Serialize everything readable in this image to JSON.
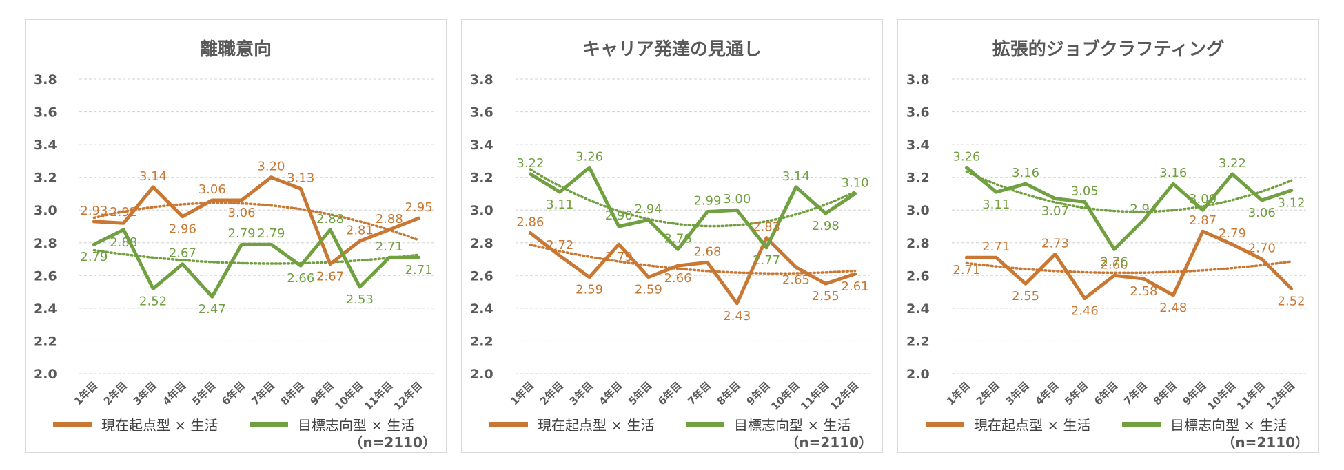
{
  "colors": {
    "current": "#c87832",
    "goal": "#70a040",
    "grid": "#d9d9d9",
    "text": "#595959"
  },
  "legend": {
    "current": "現在起点型 × 生活",
    "goal": "目標志向型 × 生活"
  },
  "note": "（n=2110）",
  "chart_data": [
    {
      "type": "line",
      "title": "離職意向",
      "categories": [
        "1年目",
        "2年目",
        "3年目",
        "4年目",
        "5年目",
        "6年目",
        "7年目",
        "8年目",
        "9年目",
        "10年目",
        "11年目",
        "12年目"
      ],
      "ylim": [
        2.0,
        3.8
      ],
      "yticks": [
        "2.0",
        "2.2",
        "2.4",
        "2.6",
        "2.8",
        "3.0",
        "3.2",
        "3.4",
        "3.6",
        "3.8"
      ],
      "trendline": "polynomial (dotted)",
      "series": [
        {
          "name": "現在起点型 × 生活",
          "values": [
            2.93,
            2.92,
            3.14,
            2.96,
            3.06,
            3.06,
            3.2,
            3.13,
            2.67,
            2.81,
            2.88,
            2.95
          ],
          "labels": [
            "2.93",
            "2.92",
            "3.14",
            "2.96",
            "3.06",
            "3.06",
            "3.20",
            "3.13",
            "2.67",
            "2.81",
            "2.88",
            "2.95"
          ],
          "label_pos": [
            "above",
            "above",
            "above",
            "below",
            "above",
            "below",
            "above",
            "above",
            "below",
            "above",
            "above",
            "above"
          ]
        },
        {
          "name": "目標志向型 × 生活",
          "values": [
            2.79,
            2.88,
            2.52,
            2.67,
            2.47,
            2.79,
            2.79,
            2.66,
            2.88,
            2.53,
            2.71,
            2.71
          ],
          "labels": [
            "2.79",
            "2.88",
            "2.52",
            "2.67",
            "2.47",
            "2.79",
            "2.79",
            "2.66",
            "2.88",
            "2.53",
            "2.71",
            "2.71"
          ],
          "label_pos": [
            "below",
            "below",
            "below",
            "above",
            "below",
            "above",
            "above",
            "below",
            "above",
            "below",
            "above",
            "below"
          ]
        }
      ]
    },
    {
      "type": "line",
      "title": "キャリア発達の見通し",
      "categories": [
        "1年目",
        "2年目",
        "3年目",
        "4年目",
        "5年目",
        "6年目",
        "7年目",
        "8年目",
        "9年目",
        "10年目",
        "11年目",
        "12年目"
      ],
      "ylim": [
        2.0,
        3.8
      ],
      "yticks": [
        "2.0",
        "2.2",
        "2.4",
        "2.6",
        "2.8",
        "3.0",
        "3.2",
        "3.4",
        "3.6",
        "3.8"
      ],
      "trendline": "polynomial (dotted)",
      "series": [
        {
          "name": "現在起点型 × 生活",
          "values": [
            2.86,
            2.72,
            2.59,
            2.79,
            2.59,
            2.66,
            2.68,
            2.43,
            2.83,
            2.65,
            2.55,
            2.61
          ],
          "labels": [
            "2.86",
            "2.72",
            "2.59",
            "2.79",
            "2.59",
            "2.66",
            "2.68",
            "2.43",
            "2.83",
            "2.65",
            "2.55",
            "2.61"
          ],
          "label_pos": [
            "above",
            "above",
            "below",
            "below",
            "below",
            "below",
            "above",
            "below",
            "above",
            "below",
            "below",
            "below"
          ]
        },
        {
          "name": "目標志向型 × 生活",
          "values": [
            3.22,
            3.11,
            3.26,
            2.9,
            2.94,
            2.76,
            2.99,
            3.0,
            2.77,
            3.14,
            2.98,
            3.1
          ],
          "labels": [
            "3.22",
            "3.11",
            "3.26",
            "2.90",
            "2.94",
            "2.76",
            "2.99",
            "3.00",
            "2.77",
            "3.14",
            "2.98",
            "3.10"
          ],
          "label_pos": [
            "above",
            "below",
            "above",
            "above",
            "above",
            "above",
            "above",
            "above",
            "below",
            "above",
            "below",
            "above"
          ]
        }
      ]
    },
    {
      "type": "line",
      "title": "拡張的ジョブクラフティング",
      "categories": [
        "1年目",
        "2年目",
        "3年目",
        "4年目",
        "5年目",
        "6年目",
        "7年目",
        "8年目",
        "9年目",
        "10年目",
        "11年目",
        "12年目"
      ],
      "ylim": [
        2.0,
        3.8
      ],
      "yticks": [
        "2.0",
        "2.2",
        "2.4",
        "2.6",
        "2.8",
        "3.0",
        "3.2",
        "3.4",
        "3.6",
        "3.8"
      ],
      "trendline": "polynomial (dotted)",
      "series": [
        {
          "name": "現在起点型 × 生活",
          "values": [
            2.71,
            2.71,
            2.55,
            2.73,
            2.46,
            2.6,
            2.58,
            2.48,
            2.87,
            2.79,
            2.7,
            2.52
          ],
          "labels": [
            "2.71",
            "2.71",
            "2.55",
            "2.73",
            "2.46",
            "2.60",
            "2.58",
            "2.48",
            "2.87",
            "2.79",
            "2.70",
            "2.52"
          ],
          "label_pos": [
            "below",
            "above",
            "below",
            "above",
            "below",
            "above",
            "below",
            "below",
            "above",
            "above",
            "above",
            "below"
          ]
        },
        {
          "name": "目標志向型 × 生活",
          "values": [
            3.26,
            3.11,
            3.16,
            3.07,
            3.05,
            2.76,
            2.94,
            3.16,
            3.0,
            3.22,
            3.06,
            3.12
          ],
          "labels": [
            "3.26",
            "3.11",
            "3.16",
            "3.07",
            "3.05",
            "2.76",
            "2.94",
            "3.16",
            "3.00",
            "3.22",
            "3.06",
            "3.12"
          ],
          "label_pos": [
            "above",
            "below",
            "above",
            "below",
            "above",
            "below",
            "above",
            "above",
            "above",
            "above",
            "below",
            "below"
          ]
        }
      ]
    }
  ]
}
